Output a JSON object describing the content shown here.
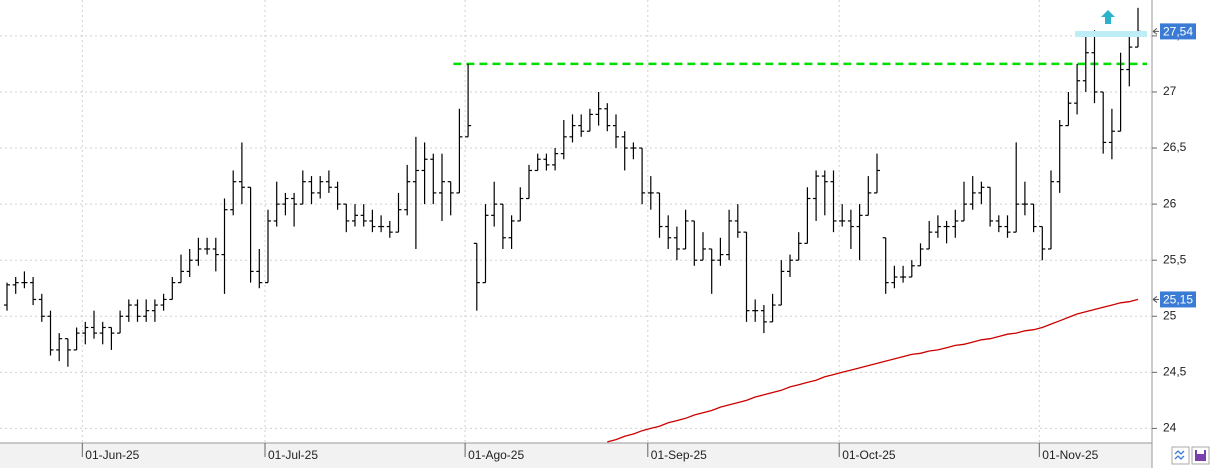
{
  "chart_data": {
    "type": "ohlc",
    "x": [
      "2025-05-20",
      "2025-05-21",
      "2025-05-22",
      "2025-05-23",
      "2025-05-26",
      "2025-05-27",
      "2025-05-28",
      "2025-05-29",
      "2025-05-30",
      "2025-06-02",
      "2025-06-03",
      "2025-06-04",
      "2025-06-05",
      "2025-06-06",
      "2025-06-09",
      "2025-06-10",
      "2025-06-11",
      "2025-06-12",
      "2025-06-13",
      "2025-06-16",
      "2025-06-17",
      "2025-06-18",
      "2025-06-19",
      "2025-06-20",
      "2025-06-23",
      "2025-06-24",
      "2025-06-25",
      "2025-06-26",
      "2025-06-27",
      "2025-06-30",
      "2025-07-01",
      "2025-07-02",
      "2025-07-03",
      "2025-07-04",
      "2025-07-07",
      "2025-07-08",
      "2025-07-09",
      "2025-07-10",
      "2025-07-11",
      "2025-07-14",
      "2025-07-15",
      "2025-07-16",
      "2025-07-17",
      "2025-07-18",
      "2025-07-21",
      "2025-07-22",
      "2025-07-23",
      "2025-07-24",
      "2025-07-25",
      "2025-07-28",
      "2025-07-29",
      "2025-07-30",
      "2025-07-31",
      "2025-08-01",
      "2025-08-04",
      "2025-08-05",
      "2025-08-06",
      "2025-08-07",
      "2025-08-08",
      "2025-08-11",
      "2025-08-12",
      "2025-08-13",
      "2025-08-14",
      "2025-08-15",
      "2025-08-18",
      "2025-08-19",
      "2025-08-20",
      "2025-08-21",
      "2025-08-22",
      "2025-08-25",
      "2025-08-26",
      "2025-08-27",
      "2025-08-28",
      "2025-08-29",
      "2025-09-01",
      "2025-09-02",
      "2025-09-03",
      "2025-09-04",
      "2025-09-05",
      "2025-09-08",
      "2025-09-09",
      "2025-09-10",
      "2025-09-11",
      "2025-09-12",
      "2025-09-15",
      "2025-09-16",
      "2025-09-17",
      "2025-09-18",
      "2025-09-19",
      "2025-09-22",
      "2025-09-23",
      "2025-09-24",
      "2025-09-25",
      "2025-09-26",
      "2025-09-29",
      "2025-09-30",
      "2025-10-01",
      "2025-10-02",
      "2025-10-03",
      "2025-10-06",
      "2025-10-07",
      "2025-10-08",
      "2025-10-09",
      "2025-10-10",
      "2025-10-13",
      "2025-10-14",
      "2025-10-15",
      "2025-10-16",
      "2025-10-17",
      "2025-10-20",
      "2025-10-21",
      "2025-10-22",
      "2025-10-23",
      "2025-10-24",
      "2025-10-27",
      "2025-10-28",
      "2025-10-29",
      "2025-10-30",
      "2025-10-31",
      "2025-11-03",
      "2025-11-04",
      "2025-11-05",
      "2025-11-06",
      "2025-11-07",
      "2025-11-10",
      "2025-11-11",
      "2025-11-12",
      "2025-11-13",
      "2025-11-14",
      "2025-11-17",
      "2025-11-18"
    ],
    "open": [
      25.1,
      25.28,
      25.3,
      25.3,
      25.15,
      25.0,
      24.7,
      24.8,
      24.7,
      24.85,
      24.9,
      24.85,
      24.9,
      24.85,
      25.0,
      25.1,
      25.0,
      25.05,
      25.1,
      25.15,
      25.3,
      25.4,
      25.5,
      25.6,
      25.6,
      25.55,
      25.95,
      26.2,
      26.15,
      25.4,
      25.3,
      25.85,
      26.0,
      26.05,
      26.0,
      26.2,
      26.1,
      26.2,
      26.15,
      26.0,
      25.85,
      25.9,
      25.85,
      25.8,
      25.8,
      25.75,
      25.95,
      26.2,
      26.3,
      26.4,
      26.1,
      26.2,
      26.1,
      26.6,
      25.65,
      25.3,
      25.9,
      26.0,
      25.7,
      25.85,
      26.05,
      26.3,
      26.4,
      26.35,
      26.45,
      26.6,
      26.7,
      26.65,
      26.8,
      26.85,
      26.7,
      26.6,
      26.5,
      26.5,
      26.1,
      26.1,
      25.8,
      25.7,
      25.6,
      25.85,
      25.5,
      25.6,
      25.5,
      25.55,
      25.85,
      25.75,
      25.05,
      25.05,
      24.95,
      25.1,
      25.4,
      25.5,
      25.65,
      26.05,
      26.25,
      26.2,
      25.85,
      25.85,
      25.8,
      25.9,
      26.1,
      25.7,
      25.3,
      25.35,
      25.35,
      25.45,
      25.6,
      25.75,
      25.8,
      25.8,
      25.85,
      26.0,
      26.1,
      26.15,
      25.85,
      25.8,
      25.75,
      26.0,
      26.0,
      25.8,
      25.6,
      26.2,
      26.7,
      26.9,
      27.1,
      27.35,
      27.0,
      26.55,
      26.65,
      27.2,
      27.4
    ],
    "high": [
      25.3,
      25.35,
      25.4,
      25.35,
      25.2,
      25.05,
      24.85,
      24.8,
      24.9,
      24.95,
      25.05,
      24.95,
      24.9,
      25.05,
      25.15,
      25.15,
      25.15,
      25.15,
      25.2,
      25.35,
      25.55,
      25.6,
      25.7,
      25.7,
      25.7,
      26.05,
      26.3,
      26.55,
      26.15,
      25.6,
      25.95,
      26.2,
      26.1,
      26.1,
      26.3,
      26.25,
      26.25,
      26.3,
      26.2,
      26.0,
      26.0,
      26.0,
      25.95,
      25.9,
      25.85,
      26.1,
      26.35,
      26.6,
      26.55,
      26.45,
      26.45,
      26.2,
      26.85,
      27.25,
      25.65,
      26.0,
      26.2,
      26.0,
      25.9,
      26.15,
      26.35,
      26.45,
      26.45,
      26.5,
      26.75,
      26.8,
      26.8,
      26.85,
      27.0,
      26.9,
      26.8,
      26.65,
      26.55,
      26.5,
      26.25,
      26.1,
      25.9,
      25.8,
      25.95,
      25.85,
      25.75,
      25.6,
      25.7,
      25.95,
      26.0,
      25.75,
      25.15,
      25.1,
      25.2,
      25.5,
      25.55,
      25.75,
      26.15,
      26.3,
      26.3,
      26.3,
      26.0,
      25.95,
      26.0,
      26.25,
      26.45,
      25.7,
      25.45,
      25.45,
      25.5,
      25.65,
      25.85,
      25.9,
      25.85,
      25.95,
      26.2,
      26.25,
      26.2,
      26.15,
      25.9,
      25.9,
      26.55,
      26.2,
      26.0,
      25.8,
      26.3,
      26.75,
      27.0,
      27.25,
      27.5,
      27.55,
      27.0,
      26.85,
      27.35,
      27.5,
      27.75
    ],
    "low": [
      25.05,
      25.2,
      25.25,
      25.1,
      24.95,
      24.65,
      24.6,
      24.55,
      24.7,
      24.75,
      24.8,
      24.75,
      24.7,
      24.85,
      24.95,
      24.95,
      24.95,
      24.95,
      25.05,
      25.15,
      25.3,
      25.35,
      25.45,
      25.55,
      25.4,
      25.2,
      25.9,
      26.0,
      25.3,
      25.25,
      25.3,
      25.8,
      25.9,
      25.8,
      26.0,
      26.0,
      26.05,
      26.1,
      25.95,
      25.75,
      25.8,
      25.8,
      25.75,
      25.75,
      25.7,
      25.75,
      25.9,
      25.6,
      26.0,
      26.0,
      25.85,
      25.9,
      26.1,
      26.6,
      25.05,
      25.3,
      25.8,
      25.6,
      25.6,
      25.85,
      26.05,
      26.3,
      26.3,
      26.3,
      26.4,
      26.55,
      26.6,
      26.65,
      26.7,
      26.65,
      26.5,
      26.3,
      26.4,
      26.0,
      25.95,
      25.7,
      25.6,
      25.5,
      25.6,
      25.45,
      25.5,
      25.2,
      25.45,
      25.5,
      25.7,
      24.95,
      24.95,
      24.85,
      24.95,
      25.1,
      25.35,
      25.5,
      25.65,
      25.85,
      25.9,
      25.75,
      25.8,
      25.6,
      25.5,
      25.9,
      26.1,
      25.2,
      25.25,
      25.3,
      25.35,
      25.45,
      25.6,
      25.7,
      25.65,
      25.7,
      25.85,
      25.95,
      26.0,
      25.8,
      25.75,
      25.7,
      25.75,
      25.9,
      25.75,
      25.5,
      25.6,
      26.1,
      26.7,
      26.8,
      27.0,
      26.9,
      26.45,
      26.4,
      26.65,
      27.05,
      27.4
    ],
    "close": [
      25.28,
      25.3,
      25.3,
      25.15,
      25.0,
      24.7,
      24.8,
      24.7,
      24.85,
      24.9,
      24.85,
      24.9,
      24.85,
      25.0,
      25.1,
      25.0,
      25.05,
      25.1,
      25.15,
      25.3,
      25.4,
      25.5,
      25.6,
      25.6,
      25.55,
      25.95,
      26.2,
      26.15,
      25.4,
      25.3,
      25.85,
      26.0,
      26.05,
      26.0,
      26.2,
      26.1,
      26.2,
      26.15,
      26.0,
      25.85,
      25.9,
      25.85,
      25.8,
      25.8,
      25.75,
      25.95,
      26.2,
      26.3,
      26.4,
      26.1,
      26.2,
      26.1,
      26.6,
      26.7,
      25.3,
      25.9,
      26.0,
      25.7,
      25.85,
      26.05,
      26.3,
      26.4,
      26.35,
      26.45,
      26.6,
      26.7,
      26.65,
      26.8,
      26.85,
      26.7,
      26.6,
      26.5,
      26.5,
      26.1,
      26.1,
      25.8,
      25.7,
      25.6,
      25.85,
      25.5,
      25.6,
      25.5,
      25.55,
      25.85,
      25.75,
      25.05,
      25.05,
      24.95,
      25.1,
      25.4,
      25.5,
      25.65,
      26.05,
      26.25,
      26.2,
      25.85,
      25.85,
      25.8,
      25.9,
      26.1,
      26.3,
      25.3,
      25.35,
      25.35,
      25.45,
      25.6,
      25.75,
      25.8,
      25.8,
      25.85,
      26.0,
      26.1,
      26.15,
      25.85,
      25.8,
      25.75,
      26.0,
      26.0,
      25.8,
      25.6,
      26.2,
      26.7,
      26.9,
      27.1,
      27.35,
      27.0,
      26.55,
      26.65,
      27.2,
      27.4,
      27.54
    ],
    "color": "#000000",
    "moving_average": {
      "color": "#cc0000",
      "values": [
        null,
        null,
        null,
        null,
        null,
        null,
        null,
        null,
        null,
        null,
        null,
        null,
        null,
        null,
        null,
        null,
        null,
        null,
        null,
        null,
        null,
        null,
        null,
        null,
        null,
        null,
        null,
        null,
        null,
        null,
        null,
        null,
        null,
        null,
        null,
        null,
        null,
        null,
        null,
        null,
        null,
        null,
        null,
        null,
        null,
        null,
        null,
        null,
        null,
        null,
        null,
        null,
        null,
        null,
        null,
        null,
        null,
        null,
        null,
        null,
        null,
        null,
        null,
        null,
        null,
        null,
        null,
        null,
        null,
        23.88,
        23.9,
        23.93,
        23.95,
        23.98,
        24.0,
        24.02,
        24.05,
        24.07,
        24.09,
        24.12,
        24.14,
        24.16,
        24.19,
        24.21,
        24.23,
        24.25,
        24.28,
        24.3,
        24.32,
        24.34,
        24.37,
        24.39,
        24.41,
        24.43,
        24.46,
        24.48,
        24.5,
        24.52,
        24.54,
        24.56,
        24.58,
        24.6,
        24.62,
        24.64,
        24.66,
        24.67,
        24.69,
        24.7,
        24.72,
        24.74,
        24.75,
        24.77,
        24.79,
        24.8,
        24.82,
        24.84,
        24.85,
        24.87,
        24.88,
        24.9,
        24.93,
        24.96,
        24.99,
        25.02,
        25.04,
        25.06,
        25.08,
        25.1,
        25.12,
        25.13,
        25.15
      ]
    },
    "reference_line": {
      "value": 27.25,
      "start": "2025-07-31",
      "color": "#00dd00"
    },
    "price_markers": [
      {
        "value": 27.54,
        "label": "27,54",
        "color": "#3a7bd5"
      },
      {
        "value": 25.15,
        "label": "25,15",
        "color": "#3a7bd5"
      }
    ],
    "ylim": [
      23.87,
      27.82
    ],
    "yticks": [
      24,
      {
        "value": 24.5,
        "label": "24,5"
      },
      25,
      {
        "value": 25.5,
        "label": "25,5"
      },
      26,
      {
        "value": 26.5,
        "label": "26,5"
      },
      27,
      {
        "value": 27.5,
        "label": "27,5"
      }
    ],
    "xticks": [
      {
        "value": "2025-06-01",
        "label": "01-Jun-25"
      },
      {
        "value": "2025-07-01",
        "label": "01-Jul-25"
      },
      {
        "value": "2025-08-01",
        "label": "01-Ago-25"
      },
      {
        "value": "2025-09-01",
        "label": "01-Sep-25"
      },
      {
        "value": "2025-10-01",
        "label": "01-Oct-25"
      },
      {
        "value": "2025-11-01",
        "label": "01-Nov-25"
      }
    ],
    "grid": true
  }
}
